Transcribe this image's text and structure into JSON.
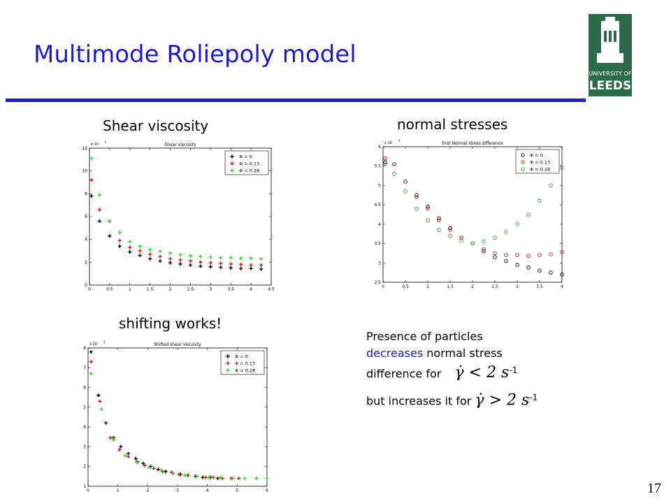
{
  "slide": {
    "title": "Multimode Roliepoly model",
    "page_number": "17",
    "logo_text": [
      "UNIVERSITY OF",
      "LEEDS"
    ],
    "captions": {
      "shear": "Shear viscosity",
      "normal": "normal stresses",
      "shift": "shifting works!"
    },
    "note": {
      "line1": "Presence of particles",
      "line2_highlight": "decreases",
      "line2_rest": " normal stress",
      "line3": "difference for",
      "line4": "but increases it for",
      "formula1": "γ̇ < 2 s",
      "formula2": "γ̇ > 2 s",
      "exponent": "-1"
    },
    "colors": {
      "title": "#1c1ccf",
      "rule": "#1c1ccf",
      "logo_bg": "#2e6b4a"
    }
  },
  "chart_data": [
    {
      "type": "scatter",
      "title": "Shear viscosity",
      "scale_label": "x 10",
      "scale_exp": "4",
      "xlim": [
        0,
        4.5
      ],
      "ylim": [
        0,
        12
      ],
      "xticks": [
        0,
        0.5,
        1,
        1.5,
        2,
        2.5,
        3,
        3.5,
        4,
        4.5
      ],
      "yticks": [
        0,
        2,
        4,
        6,
        8,
        10,
        12
      ],
      "marker": "plus",
      "legend_position": "top-right",
      "series": [
        {
          "name": "Φ = 0",
          "color": "#000000",
          "x": [
            0.05,
            0.25,
            0.5,
            0.75,
            1,
            1.25,
            1.5,
            1.75,
            2,
            2.25,
            2.5,
            2.75,
            3,
            3.25,
            3.5,
            3.75,
            4,
            4.25
          ],
          "y": [
            7.8,
            5.6,
            4.3,
            3.4,
            2.9,
            2.6,
            2.3,
            2.1,
            1.95,
            1.85,
            1.75,
            1.65,
            1.6,
            1.55,
            1.5,
            1.45,
            1.45,
            1.4
          ]
        },
        {
          "name": "Φ = 0.13",
          "color": "#e01010",
          "x": [
            0.05,
            0.25,
            0.5,
            0.75,
            1,
            1.25,
            1.5,
            1.75,
            2,
            2.25,
            2.5,
            2.75,
            3,
            3.25,
            3.5,
            3.75,
            4,
            4.25
          ],
          "y": [
            9.2,
            6.6,
            5.6,
            3.9,
            3.3,
            3.0,
            2.7,
            2.5,
            2.3,
            2.2,
            2.1,
            2.0,
            1.95,
            1.9,
            1.85,
            1.8,
            1.75,
            1.75
          ]
        },
        {
          "name": "Φ = 0.28",
          "color": "#20e020",
          "x": [
            0.05,
            0.25,
            0.5,
            0.75,
            1,
            1.25,
            1.5,
            1.75,
            2,
            2.25,
            2.5,
            2.75,
            3,
            3.25,
            3.5,
            3.75,
            4,
            4.25
          ],
          "y": [
            11.1,
            7.9,
            5.6,
            4.6,
            3.8,
            3.4,
            3.1,
            2.95,
            2.8,
            2.65,
            2.55,
            2.5,
            2.45,
            2.4,
            2.4,
            2.35,
            2.35,
            2.3
          ]
        }
      ]
    },
    {
      "type": "scatter",
      "title": "First Normal stress difference",
      "scale_label": "x 10",
      "scale_exp": "5",
      "xlim": [
        0,
        4
      ],
      "ylim": [
        2.5,
        6
      ],
      "xticks": [
        0,
        0.5,
        1,
        1.5,
        2,
        2.5,
        3,
        3.5,
        4
      ],
      "yticks": [
        2.5,
        3,
        3.5,
        4,
        4.5,
        5,
        5.5,
        6
      ],
      "marker": "circle",
      "legend_position": "top-right",
      "series": [
        {
          "name": "Φ = 0",
          "color": "#000000",
          "x": [
            0.05,
            0.25,
            0.5,
            0.75,
            1,
            1.25,
            1.5,
            1.75,
            2,
            2.25,
            2.5,
            2.75,
            3,
            3.25,
            3.5,
            3.75,
            4
          ],
          "y": [
            5.6,
            5.55,
            5.1,
            4.75,
            4.45,
            4.15,
            3.9,
            3.65,
            3.5,
            3.3,
            3.15,
            3.05,
            2.95,
            2.88,
            2.8,
            2.75,
            2.7
          ]
        },
        {
          "name": "Φ = 0.13",
          "color": "#e01010",
          "x": [
            0.05,
            0.25,
            0.5,
            0.75,
            1,
            1.25,
            1.5,
            1.75,
            2,
            2.25,
            2.5,
            2.75,
            3,
            3.25,
            3.5,
            3.75,
            4
          ],
          "y": [
            5.7,
            5.55,
            5.1,
            4.7,
            4.4,
            4.1,
            3.85,
            3.65,
            3.5,
            3.35,
            3.25,
            3.2,
            3.2,
            3.18,
            3.2,
            3.22,
            3.28
          ]
        },
        {
          "name": "Φ = 0.28",
          "color": "#20b020",
          "x": [
            0.05,
            0.25,
            0.5,
            0.75,
            1,
            1.25,
            1.5,
            1.75,
            2,
            2.25,
            2.5,
            2.75,
            3,
            3.25,
            3.5,
            3.75,
            4
          ],
          "y": [
            5.55,
            5.3,
            4.85,
            4.4,
            4.1,
            3.85,
            3.7,
            3.58,
            3.5,
            3.55,
            3.65,
            3.8,
            4.0,
            4.25,
            4.6,
            5.0,
            5.45
          ]
        }
      ]
    },
    {
      "type": "scatter",
      "title": "Shifted shear viscosity",
      "scale_label": "x 10",
      "scale_exp": "4",
      "xlim": [
        0,
        6
      ],
      "ylim": [
        1,
        8
      ],
      "xticks": [
        0,
        1,
        2,
        3,
        4,
        5,
        6
      ],
      "yticks": [
        1,
        2,
        3,
        4,
        5,
        6,
        7,
        8
      ],
      "marker": "plus",
      "legend_position": "top-right",
      "series": [
        {
          "name": "Φ = 0",
          "color": "#000000",
          "x": [
            0.1,
            0.35,
            0.6,
            0.85,
            1.1,
            1.35,
            1.6,
            1.85,
            2.1,
            2.35,
            2.6,
            2.85,
            3.1,
            3.35,
            3.6,
            3.85,
            4.1,
            4.35
          ],
          "y": [
            7.8,
            5.6,
            4.2,
            3.45,
            3.0,
            2.65,
            2.4,
            2.15,
            2.0,
            1.85,
            1.75,
            1.65,
            1.6,
            1.55,
            1.5,
            1.45,
            1.45,
            1.4
          ]
        },
        {
          "name": "Φ = 0.13",
          "color": "#e01010",
          "x": [
            0.1,
            0.4,
            0.75,
            1.05,
            1.35,
            1.65,
            1.9,
            2.2,
            2.5,
            2.8,
            3.05,
            3.35,
            3.65,
            3.95,
            4.2,
            4.5,
            4.8,
            5.05
          ],
          "y": [
            7.3,
            5.3,
            3.45,
            2.85,
            2.5,
            2.25,
            2.05,
            1.9,
            1.75,
            1.7,
            1.6,
            1.55,
            1.5,
            1.45,
            1.45,
            1.4,
            1.4,
            1.4
          ]
        },
        {
          "name": "Φ = 0.28",
          "color": "#20e020",
          "x": [
            0.1,
            0.45,
            0.85,
            1.25,
            1.65,
            2.05,
            2.45,
            2.85,
            3.25,
            3.65,
            4.05,
            4.45,
            4.85,
            5.25,
            5.65,
            6.0
          ],
          "y": [
            6.7,
            4.9,
            3.35,
            2.55,
            2.2,
            1.95,
            1.8,
            1.65,
            1.55,
            1.5,
            1.45,
            1.45,
            1.4,
            1.4,
            1.4,
            1.4
          ]
        }
      ]
    }
  ]
}
